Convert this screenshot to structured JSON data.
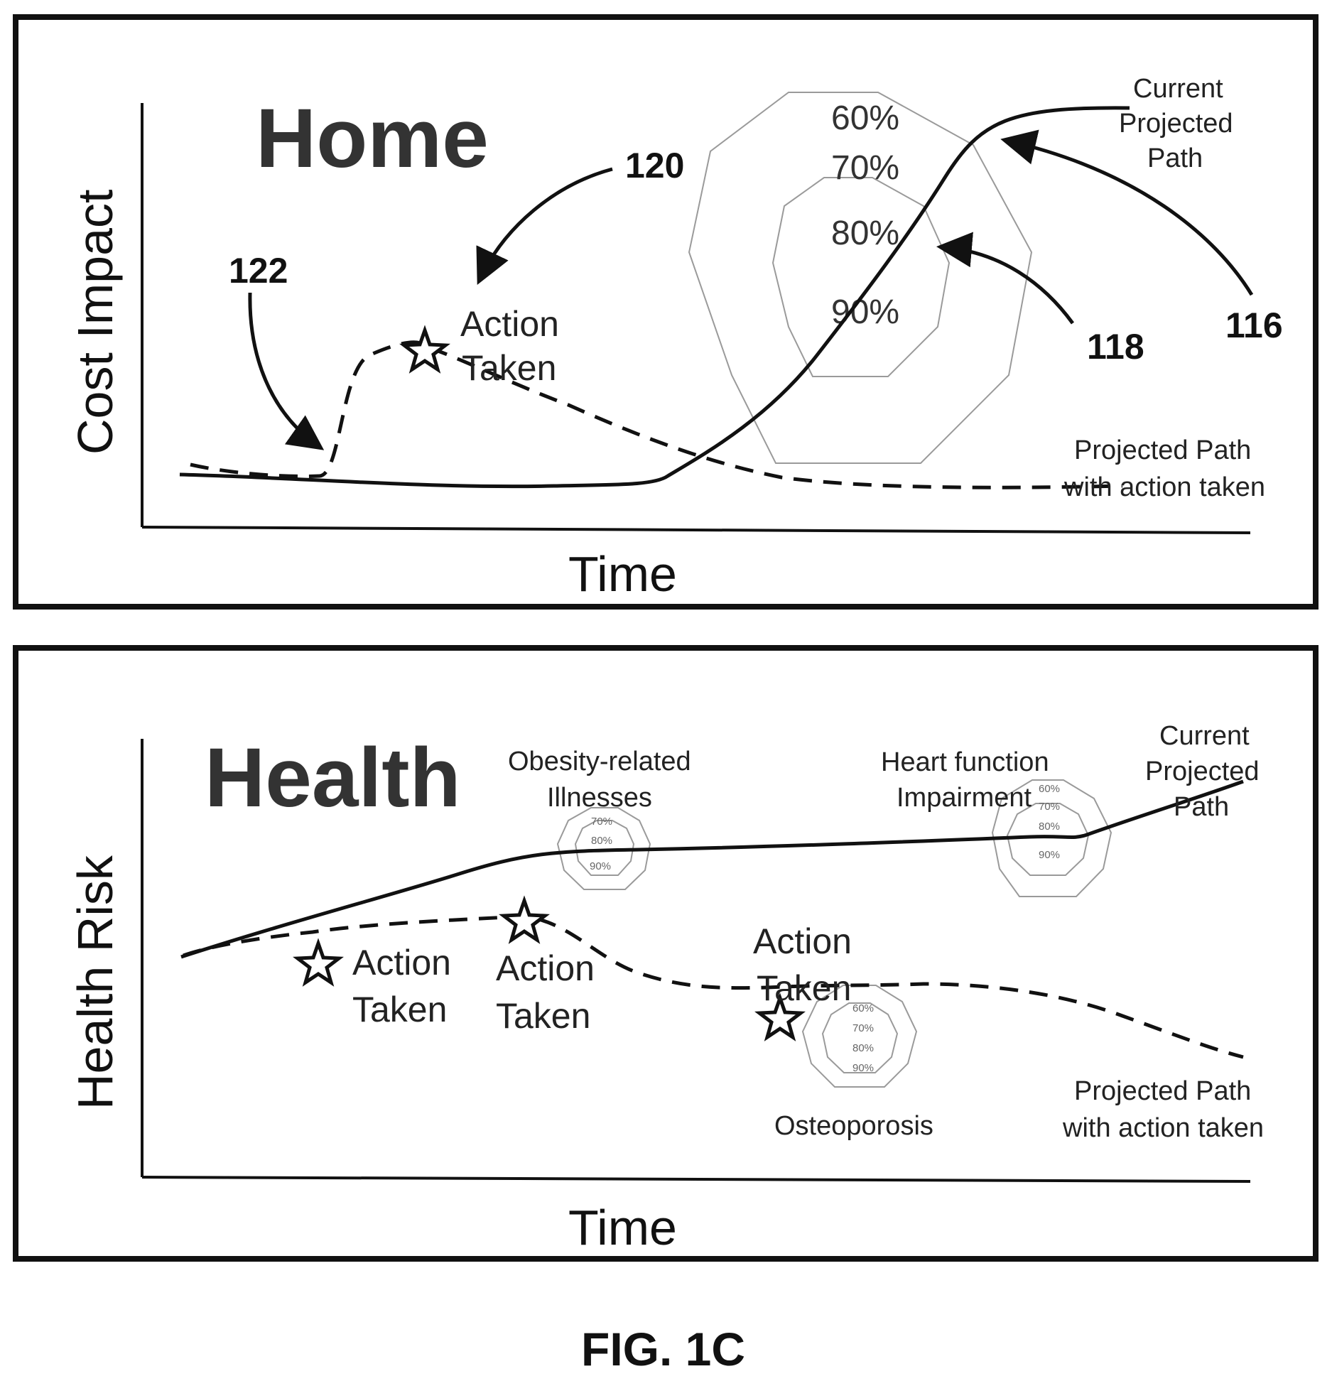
{
  "figure_label": "FIG. 1C",
  "home": {
    "title": "Home",
    "y_label": "Cost Impact",
    "x_label": "Time",
    "refs": {
      "r120": "120",
      "r122": "122",
      "r118": "118",
      "r116": "116"
    },
    "action": {
      "line1": "Action",
      "line2": "Taken"
    },
    "current_path": {
      "line1": "Current",
      "line2": "Projected",
      "line3": "Path"
    },
    "action_path": {
      "line1": "Projected Path",
      "line2": "with action taken"
    },
    "percentages": [
      "60%",
      "70%",
      "80%",
      "90%"
    ]
  },
  "health": {
    "title": "Health",
    "y_label": "Health Risk",
    "x_label": "Time",
    "action1": {
      "line1": "Action",
      "line2": "Taken"
    },
    "action2": {
      "line1": "Action",
      "line2": "Taken"
    },
    "action3": {
      "line1": "Action",
      "line2": "Taken"
    },
    "risk_obesity": {
      "line1": "Obesity-related",
      "line2": "Illnesses"
    },
    "risk_heart": {
      "line1": "Heart function",
      "line2": "Impairment"
    },
    "risk_osteo": {
      "line1": "Osteoporosis"
    },
    "current_path": {
      "line1": "Current",
      "line2": "Projected",
      "line3": "Path"
    },
    "action_path": {
      "line1": "Projected Path",
      "line2": "with action taken"
    },
    "percentages_obesity": [
      "70%",
      "80%",
      "90%"
    ],
    "percentages_heart": [
      "60%",
      "70%",
      "80%",
      "90%"
    ],
    "percentages_osteo": [
      "60%",
      "70%",
      "80%",
      "90%"
    ]
  }
}
